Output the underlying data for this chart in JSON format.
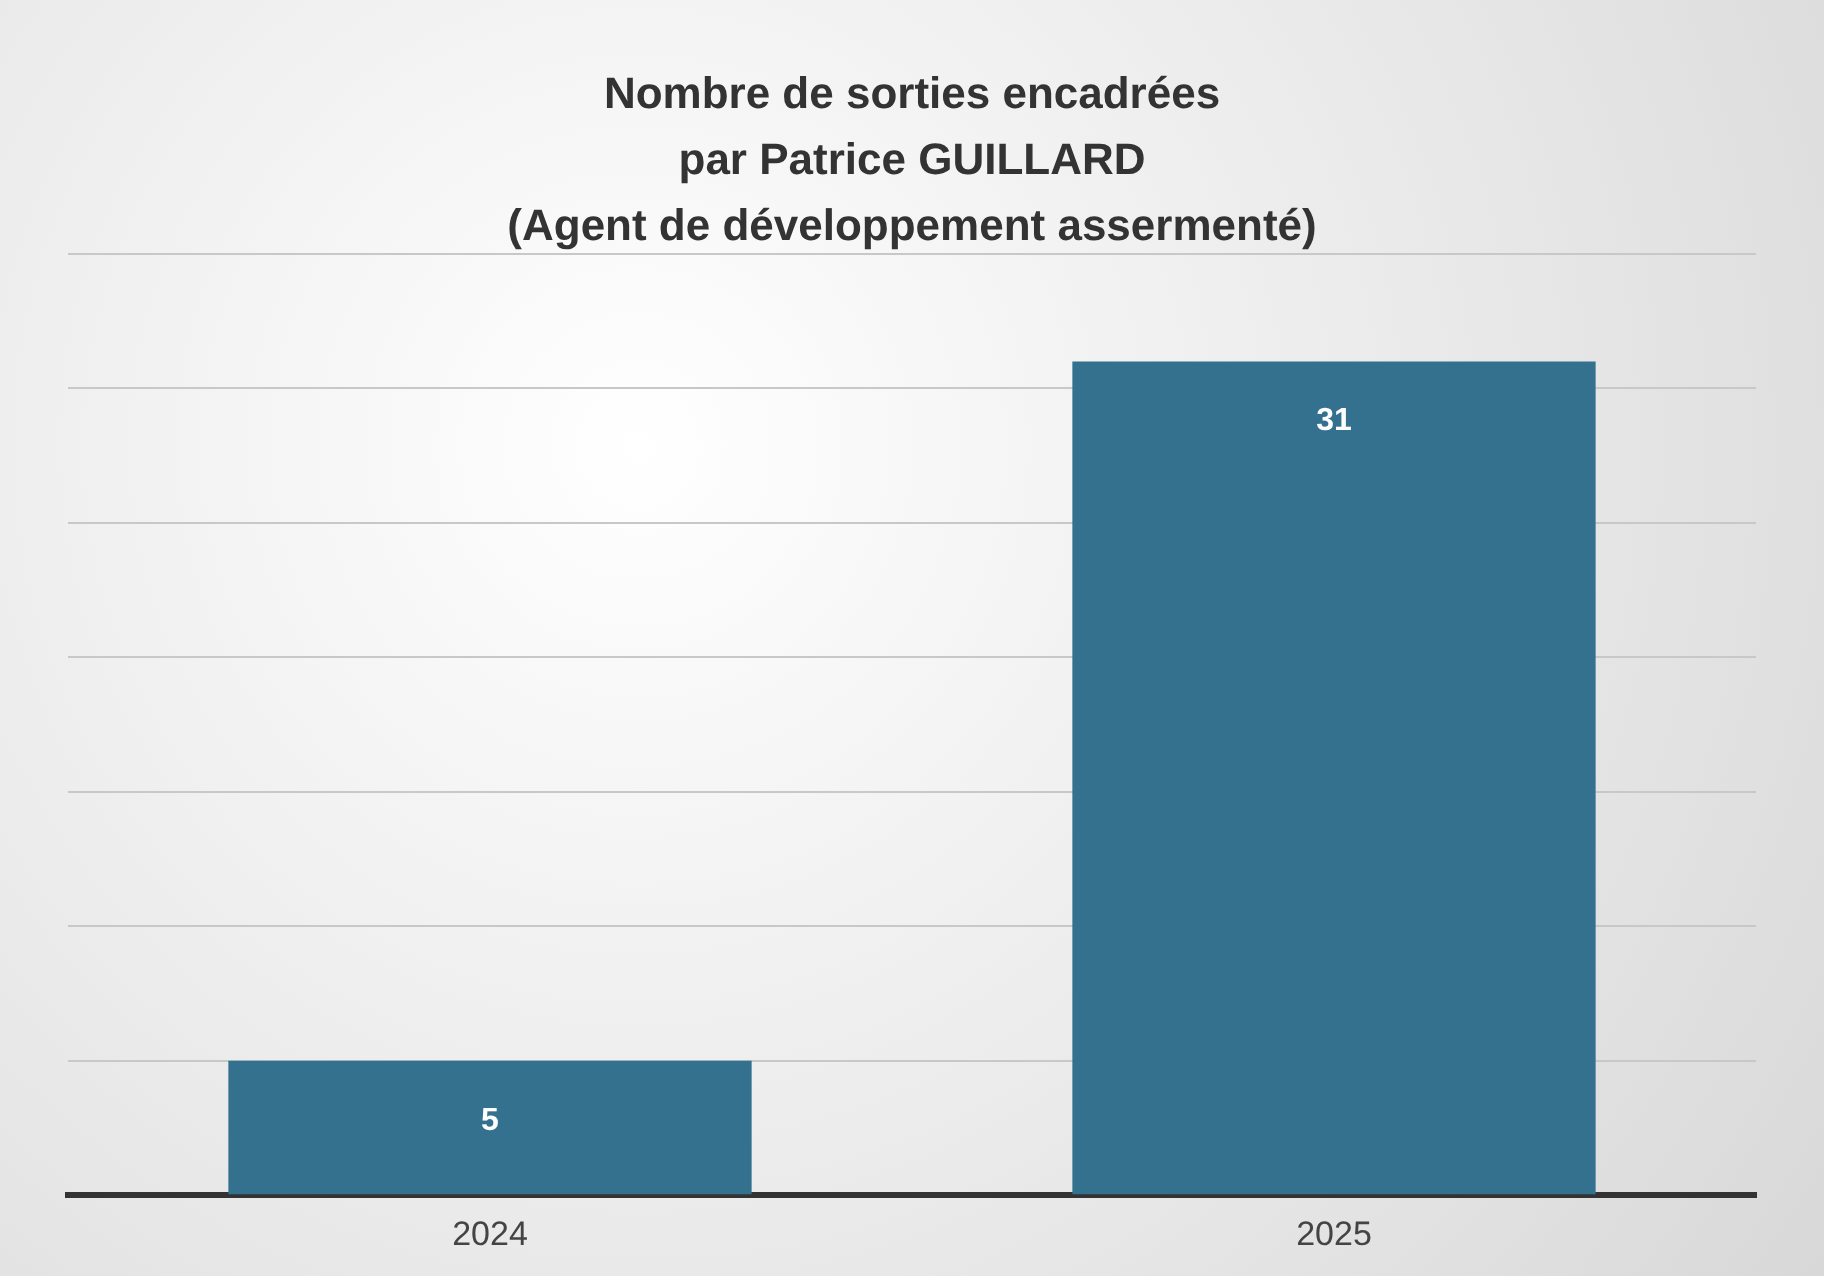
{
  "chart_data": {
    "type": "bar",
    "title": "Nombre de sorties encadrées\npar Patrice GUILLARD\n(Agent de développement assermenté)",
    "categories": [
      "2024",
      "2025"
    ],
    "values": [
      5,
      31
    ],
    "color": "#33718f",
    "ylim": [
      0,
      35
    ],
    "yticks": [
      {
        "value": 0,
        "label": null
      },
      {
        "value": 5,
        "label": null
      },
      {
        "value": 10,
        "label": null
      },
      {
        "value": 15,
        "label": null
      },
      {
        "value": 20,
        "label": null
      },
      {
        "value": 25,
        "label": null
      },
      {
        "value": 30,
        "label": null
      },
      {
        "value": 35,
        "label": null
      }
    ],
    "grid": "y",
    "tick_labels": "x",
    "data_labels": true,
    "legend": false
  }
}
